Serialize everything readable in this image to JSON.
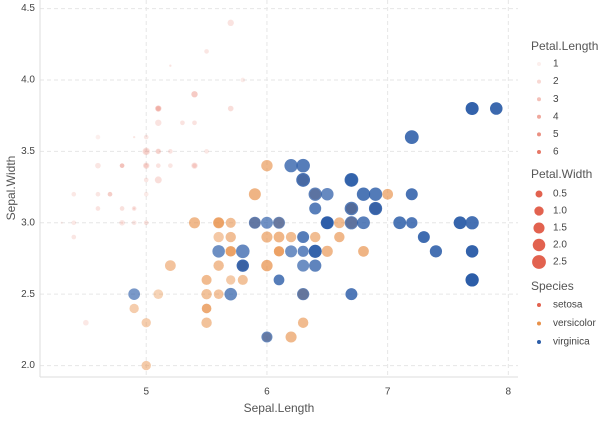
{
  "chart_data": {
    "type": "scatter",
    "x_label": "Sepal.Length",
    "y_label": "Sepal.Width",
    "xlim": [
      4.12,
      8.08
    ],
    "xticks": [
      5,
      6,
      7,
      8
    ],
    "ylim": [
      1.92,
      4.56
    ],
    "yticks": [
      {
        "value": 2,
        "label": "2.0"
      },
      2.5,
      {
        "value": 3,
        "label": "3.0"
      },
      3.5,
      {
        "value": 4,
        "label": "4.0"
      },
      4.5
    ],
    "grid": true,
    "alpha_legend": {
      "title": "Petal.Length",
      "color": "#e2624f",
      "values": [
        1,
        2,
        3,
        4,
        5,
        6
      ]
    },
    "size_legend": {
      "title": "Petal.Width",
      "color": "#e2624f",
      "values": [
        0.5,
        {
          "value": 1,
          "label": "1.0"
        },
        1.5,
        {
          "value": 2,
          "label": "2.0"
        },
        2.5
      ]
    },
    "legend_title": "Species",
    "series": [
      {
        "name": "setosa",
        "color": "#e2624f",
        "x": [
          5.1,
          4.9,
          4.7,
          4.6,
          5.0,
          5.4,
          4.6,
          5.0,
          4.4,
          4.9,
          5.4,
          4.8,
          4.8,
          4.3,
          5.8,
          5.7,
          5.4,
          5.1,
          5.7,
          5.1,
          5.4,
          5.1,
          4.6,
          5.1,
          4.8,
          5.0,
          5.0,
          5.2,
          5.2,
          4.7,
          4.8,
          5.4,
          5.2,
          5.5,
          4.9,
          5.0,
          5.5,
          4.9,
          4.4,
          5.1,
          5.0,
          4.5,
          4.4,
          5.0,
          5.1,
          4.8,
          5.1,
          4.6,
          5.3,
          5.0
        ],
        "y": [
          3.5,
          3.0,
          3.2,
          3.1,
          3.6,
          3.9,
          3.4,
          3.4,
          2.9,
          3.1,
          3.7,
          3.4,
          3.0,
          3.0,
          4.0,
          4.4,
          3.9,
          3.5,
          3.8,
          3.8,
          3.4,
          3.7,
          3.6,
          3.3,
          3.4,
          3.0,
          3.4,
          3.5,
          3.4,
          3.2,
          3.1,
          3.4,
          4.1,
          4.2,
          3.1,
          3.2,
          3.5,
          3.6,
          3.0,
          3.4,
          3.5,
          2.3,
          3.2,
          3.5,
          3.8,
          3.0,
          3.8,
          3.2,
          3.7,
          3.3
        ],
        "alpha": [
          1.4,
          1.4,
          1.3,
          1.5,
          1.4,
          1.7,
          1.4,
          1.5,
          1.4,
          1.5,
          1.5,
          1.6,
          1.4,
          1.1,
          1.2,
          1.5,
          1.3,
          1.4,
          1.7,
          1.5,
          1.7,
          1.5,
          1.0,
          1.7,
          1.9,
          1.6,
          1.6,
          1.5,
          1.4,
          1.6,
          1.6,
          1.5,
          1.5,
          1.4,
          1.5,
          1.2,
          1.3,
          1.4,
          1.3,
          1.5,
          1.3,
          1.3,
          1.3,
          1.6,
          1.9,
          1.4,
          1.6,
          1.4,
          1.5,
          1.4
        ],
        "size": [
          0.2,
          0.2,
          0.2,
          0.2,
          0.2,
          0.4,
          0.3,
          0.2,
          0.2,
          0.1,
          0.2,
          0.2,
          0.1,
          0.1,
          0.2,
          0.4,
          0.4,
          0.3,
          0.3,
          0.3,
          0.2,
          0.4,
          0.2,
          0.5,
          0.2,
          0.2,
          0.4,
          0.2,
          0.2,
          0.2,
          0.2,
          0.4,
          0.1,
          0.2,
          0.2,
          0.2,
          0.2,
          0.1,
          0.2,
          0.2,
          0.3,
          0.3,
          0.2,
          0.6,
          0.4,
          0.3,
          0.2,
          0.2,
          0.2,
          0.2
        ]
      },
      {
        "name": "versicolor",
        "color": "#e8914a",
        "x": [
          7.0,
          6.4,
          6.9,
          5.5,
          6.5,
          5.7,
          6.3,
          4.9,
          6.6,
          5.2,
          5.0,
          5.9,
          6.0,
          6.1,
          5.6,
          6.7,
          5.6,
          5.8,
          6.2,
          5.6,
          5.9,
          6.1,
          6.3,
          6.1,
          6.4,
          6.6,
          6.8,
          6.7,
          6.0,
          5.7,
          5.5,
          5.5,
          5.8,
          6.0,
          5.4,
          6.0,
          6.7,
          6.3,
          5.6,
          5.5,
          5.5,
          6.1,
          5.8,
          5.0,
          5.6,
          5.7,
          5.7,
          6.2,
          5.1,
          5.7
        ],
        "y": [
          3.2,
          3.2,
          3.1,
          2.3,
          2.8,
          2.8,
          3.3,
          2.4,
          2.9,
          2.7,
          2.0,
          3.0,
          2.2,
          2.9,
          2.9,
          3.1,
          3.0,
          2.7,
          2.2,
          2.5,
          3.2,
          2.8,
          2.5,
          2.8,
          2.9,
          3.0,
          2.8,
          3.0,
          2.9,
          2.6,
          2.4,
          2.4,
          2.7,
          2.7,
          3.0,
          3.4,
          3.1,
          2.3,
          3.0,
          2.5,
          2.6,
          3.0,
          2.6,
          2.3,
          2.7,
          3.0,
          2.9,
          2.9,
          2.5,
          2.8
        ],
        "alpha": [
          4.7,
          4.5,
          4.9,
          4.0,
          4.6,
          4.5,
          4.7,
          3.3,
          4.6,
          3.9,
          3.5,
          4.2,
          4.0,
          4.7,
          3.6,
          4.4,
          4.5,
          4.1,
          4.5,
          3.9,
          4.8,
          4.0,
          4.9,
          4.7,
          4.3,
          4.4,
          4.8,
          5.0,
          4.5,
          3.5,
          3.8,
          3.7,
          3.9,
          5.1,
          4.5,
          4.5,
          4.7,
          4.4,
          4.1,
          4.0,
          4.4,
          4.6,
          4.0,
          3.3,
          4.2,
          4.2,
          4.2,
          4.3,
          3.0,
          4.1
        ],
        "size": [
          1.4,
          1.5,
          1.5,
          1.3,
          1.5,
          1.3,
          1.6,
          1.0,
          1.3,
          1.4,
          1.0,
          1.5,
          1.0,
          1.4,
          1.3,
          1.4,
          1.5,
          1.0,
          1.5,
          1.1,
          1.8,
          1.3,
          1.5,
          1.2,
          1.3,
          1.4,
          1.4,
          1.7,
          1.5,
          1.0,
          1.1,
          1.0,
          1.2,
          1.6,
          1.5,
          1.6,
          1.5,
          1.3,
          1.3,
          1.3,
          1.2,
          1.4,
          1.2,
          1.0,
          1.3,
          1.2,
          1.3,
          1.3,
          1.1,
          1.3
        ]
      },
      {
        "name": "virginica",
        "color": "#2c5da8",
        "x": [
          6.3,
          5.8,
          7.1,
          6.3,
          6.5,
          7.6,
          4.9,
          7.3,
          6.7,
          7.2,
          6.5,
          6.4,
          6.8,
          5.7,
          5.8,
          6.4,
          6.5,
          7.7,
          7.7,
          6.0,
          6.9,
          5.6,
          7.7,
          6.3,
          6.7,
          7.2,
          6.2,
          6.1,
          6.4,
          7.2,
          7.4,
          7.9,
          6.4,
          6.3,
          6.1,
          7.7,
          6.3,
          6.4,
          6.0,
          6.9,
          6.7,
          6.9,
          5.8,
          6.8,
          6.7,
          6.7,
          6.3,
          6.5,
          6.2,
          5.9
        ],
        "y": [
          3.3,
          2.7,
          3.0,
          2.9,
          3.0,
          3.0,
          2.5,
          2.9,
          2.5,
          3.6,
          3.2,
          2.7,
          3.0,
          2.5,
          2.8,
          3.2,
          3.0,
          3.8,
          2.6,
          2.2,
          3.2,
          2.8,
          2.8,
          2.7,
          3.3,
          3.2,
          2.8,
          3.0,
          2.8,
          3.0,
          2.8,
          3.8,
          2.8,
          2.8,
          2.6,
          3.0,
          3.4,
          3.1,
          3.0,
          3.1,
          3.1,
          3.1,
          2.7,
          3.2,
          3.3,
          3.0,
          2.5,
          3.0,
          3.4,
          3.0
        ],
        "alpha": [
          6.0,
          5.1,
          5.9,
          5.6,
          5.8,
          6.6,
          4.5,
          6.3,
          5.8,
          6.1,
          5.1,
          5.3,
          5.5,
          5.0,
          5.1,
          5.3,
          5.5,
          6.7,
          6.9,
          5.0,
          5.7,
          4.9,
          6.7,
          4.9,
          5.7,
          6.0,
          4.8,
          4.9,
          5.6,
          5.8,
          6.1,
          6.4,
          5.6,
          5.1,
          5.6,
          6.1,
          5.6,
          5.5,
          4.8,
          5.4,
          5.6,
          5.1,
          5.1,
          5.9,
          5.7,
          5.2,
          5.0,
          5.2,
          5.4,
          5.1
        ],
        "size": [
          2.5,
          1.9,
          2.1,
          1.8,
          2.2,
          2.1,
          1.7,
          1.8,
          1.8,
          2.5,
          2.0,
          1.9,
          2.1,
          2.0,
          2.4,
          2.3,
          1.8,
          2.2,
          2.3,
          1.5,
          2.3,
          2.0,
          2.0,
          1.8,
          2.1,
          1.8,
          1.8,
          1.8,
          2.1,
          1.6,
          1.9,
          2.0,
          2.2,
          1.5,
          1.4,
          2.3,
          2.4,
          1.8,
          1.8,
          2.1,
          2.4,
          2.3,
          1.9,
          2.3,
          2.5,
          2.3,
          1.9,
          2.0,
          2.3,
          1.8
        ]
      }
    ]
  }
}
